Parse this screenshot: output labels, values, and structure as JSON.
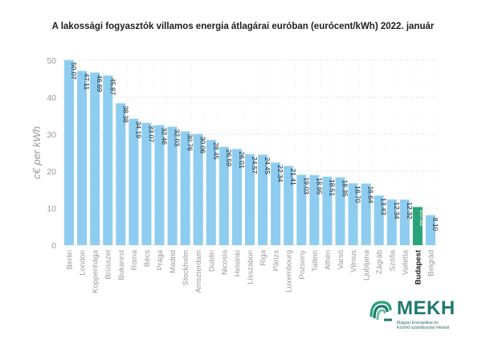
{
  "title": "A lakossági fogyasztók villamos energia átlagárai euróban (eurócent/kWh) 2022. január",
  "chart_data": {
    "type": "bar",
    "title": "A lakossági fogyasztók villamos energia átlagárai euróban (eurócent/kWh) 2022. január",
    "ylabel": "c€ per kWh",
    "xlabel": "",
    "ylim": [
      0,
      50
    ],
    "yticks": [
      0,
      10,
      20,
      30,
      40,
      50
    ],
    "grid": true,
    "categories": [
      "Berlin",
      "London",
      "Koppenhága",
      "Brüsszel",
      "Bukarest",
      "Róma",
      "Bécs",
      "Prága",
      "Madrid",
      "Stockholm",
      "Amszterdam",
      "Dublin",
      "Nicosia",
      "Helsinki",
      "Lisszabon",
      "Riga",
      "Párizs",
      "Luxembourg",
      "Pozsony",
      "Tallinn",
      "Athén",
      "Varsó",
      "Vilnius",
      "Ljubljana",
      "Zágráb",
      "Szófia",
      "Valletta",
      "Budapest",
      "Belgrád"
    ],
    "values": [
      50.07,
      47.11,
      46.69,
      45.87,
      38.38,
      34.19,
      33.07,
      32.46,
      32.03,
      30.76,
      30.06,
      28.45,
      26.59,
      26.01,
      24.57,
      24.45,
      22.34,
      21.41,
      19.03,
      18.95,
      18.51,
      18.35,
      16.7,
      16.64,
      13.43,
      12.34,
      12.32,
      10.32,
      8.1
    ],
    "value_labels": [
      "50.07",
      "47.11",
      "46.69",
      "45.87",
      "38.38",
      "34.19",
      "33.07",
      "32.46",
      "32.03",
      "30.76",
      "30.06",
      "28.45",
      "26.59",
      "26.01",
      "24.57",
      "24.45",
      "22.34",
      "21.41",
      "19.03",
      "18.95",
      "18.51",
      "18.35",
      "16.70",
      "16.64",
      "13.43",
      "12.34",
      "12.32",
      "10.32",
      "8.10"
    ],
    "highlight_category": "Budapest",
    "colors": {
      "bar": "#8ecdf0",
      "highlight": "#2aa37a",
      "grid": "#d9d9d9",
      "axis_text": "#9a9a9a",
      "label": "#1a1a1a",
      "highlight_label": "#ffffff"
    }
  },
  "logo": {
    "word": "MEKH",
    "subtitle_line1": "Magyar Energetikai és",
    "subtitle_line2": "Közmű-szabályozási Hivatal",
    "color": "#1f7a6e"
  }
}
